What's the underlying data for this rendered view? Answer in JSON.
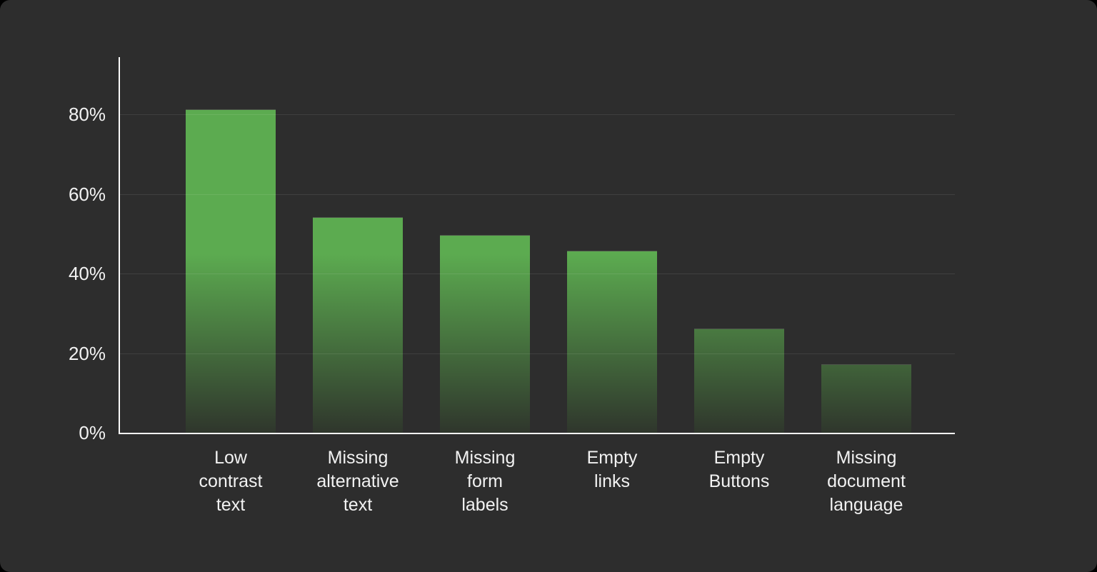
{
  "chart_data": {
    "type": "bar",
    "title": "",
    "xlabel": "",
    "ylabel": "",
    "categories": [
      "Low contrast text",
      "Missing alternative text",
      "Missing form labels",
      "Empty links",
      "Empty Buttons",
      "Missing document language"
    ],
    "category_label_lines": [
      "Low\ncontrast\ntext",
      "Missing\nalternative\ntext",
      "Missing\nform\nlabels",
      "Empty\nlinks",
      "Empty\nButtons",
      "Missing\ndocument\nlanguage"
    ],
    "values": [
      81,
      54,
      49.5,
      45.5,
      26,
      17
    ],
    "value_unit": "%",
    "yticks": [
      0,
      20,
      40,
      60,
      80
    ],
    "ytick_labels": [
      "0%",
      "20%",
      "40%",
      "60%",
      "80%"
    ],
    "ylim": [
      0,
      94
    ],
    "grid": "horizontal-only",
    "legend": "none",
    "colors": {
      "page_background": "#000000",
      "panel_background": "#2d2d2d",
      "bar_gradient_top": "#5cab50",
      "bar_gradient_bottom": "#2f362c",
      "axis_line": "#fafafa",
      "gridline": "rgba(255,255,255,0.09)",
      "label_text": "#f2f2f2"
    }
  }
}
